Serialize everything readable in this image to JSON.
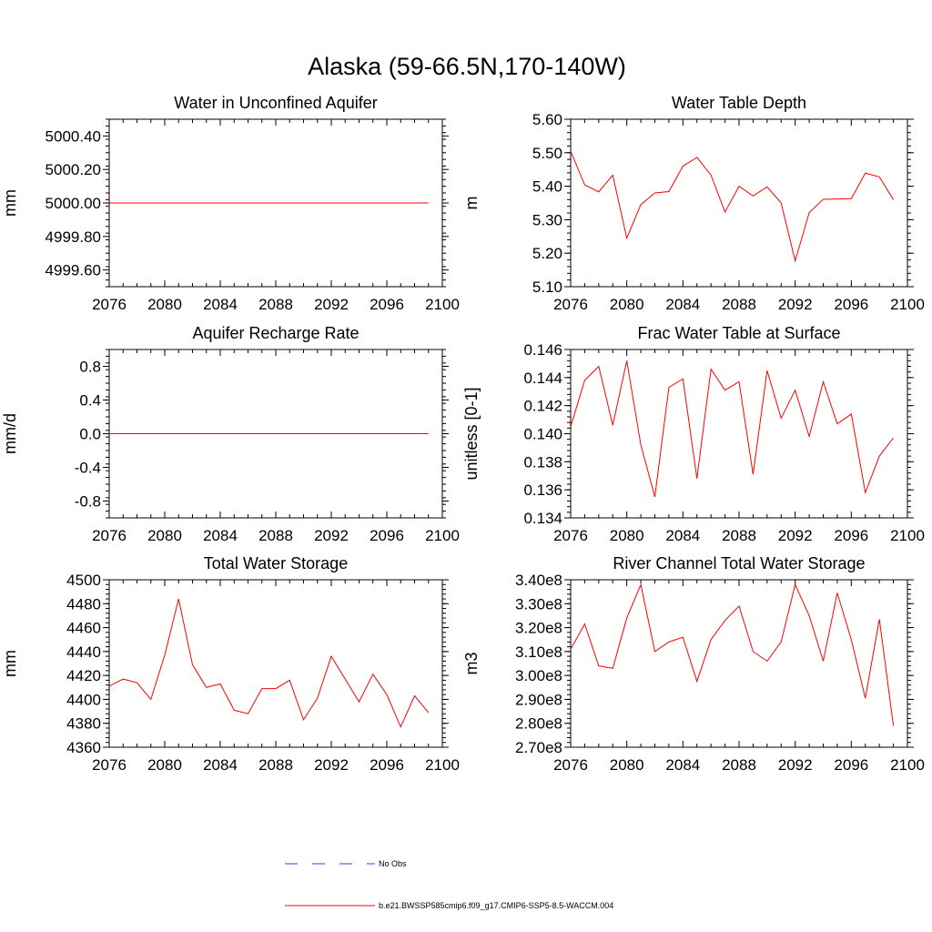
{
  "figure": {
    "title": "Alaska (59-66.5N,170-140W)"
  },
  "colors": {
    "model_line": "#ff0000",
    "obs_line": "#3b3bd6",
    "axis": "#000000"
  },
  "legend": {
    "obs_label": "No Obs",
    "model_label": "b.e21.BWSSP585cmip6.f09_g17.CMIP6-SSP5-8.5-WACCM.004"
  },
  "chart_data": [
    {
      "type": "line",
      "title": "Water in Unconfined Aquifer",
      "xlabel": "",
      "ylabel": "mm",
      "xlim": [
        2076,
        2100
      ],
      "ylim": [
        4999.5,
        5000.5
      ],
      "xticks": [
        2076,
        2080,
        2084,
        2088,
        2092,
        2096,
        2100
      ],
      "xtick_labels": [
        "2076",
        "2080",
        "2084",
        "2088",
        "2092",
        "2096",
        "2100"
      ],
      "yticks": [
        4999.6,
        4999.8,
        5000.0,
        5000.2,
        5000.4
      ],
      "ytick_labels": [
        "4999.60",
        "4999.80",
        "5000.00",
        "5000.20",
        "5000.40"
      ],
      "yminor_step": 0.04,
      "x": [
        2076,
        2077,
        2078,
        2079,
        2080,
        2081,
        2082,
        2083,
        2084,
        2085,
        2086,
        2087,
        2088,
        2089,
        2090,
        2091,
        2092,
        2093,
        2094,
        2095,
        2096,
        2097,
        2098,
        2099
      ],
      "series": [
        {
          "name": "b.e21.BWSSP585cmip6.f09_g17.CMIP6-SSP5-8.5-WACCM.004",
          "values": [
            5000,
            5000,
            5000,
            5000,
            5000,
            5000,
            5000,
            5000,
            5000,
            5000,
            5000,
            5000,
            5000,
            5000,
            5000,
            5000,
            5000,
            5000,
            5000,
            5000,
            5000,
            5000,
            5000,
            5000
          ]
        }
      ]
    },
    {
      "type": "line",
      "title": "Water Table Depth",
      "xlabel": "",
      "ylabel": "m",
      "xlim": [
        2076,
        2100
      ],
      "ylim": [
        5.1,
        5.6
      ],
      "xticks": [
        2076,
        2080,
        2084,
        2088,
        2092,
        2096,
        2100
      ],
      "xtick_labels": [
        "2076",
        "2080",
        "2084",
        "2088",
        "2092",
        "2096",
        "2100"
      ],
      "yticks": [
        5.1,
        5.2,
        5.3,
        5.4,
        5.5,
        5.6
      ],
      "ytick_labels": [
        "5.10",
        "5.20",
        "5.30",
        "5.40",
        "5.50",
        "5.60"
      ],
      "yminor_step": 0.02,
      "x": [
        2076,
        2077,
        2078,
        2079,
        2080,
        2081,
        2082,
        2083,
        2084,
        2085,
        2086,
        2087,
        2088,
        2089,
        2090,
        2091,
        2092,
        2093,
        2094,
        2095,
        2096,
        2097,
        2098,
        2099
      ],
      "series": [
        {
          "name": "b.e21.BWSSP585cmip6.f09_g17.CMIP6-SSP5-8.5-WACCM.004",
          "values": [
            5.505,
            5.404,
            5.383,
            5.433,
            5.245,
            5.345,
            5.38,
            5.384,
            5.46,
            5.486,
            5.433,
            5.323,
            5.4,
            5.371,
            5.398,
            5.35,
            5.177,
            5.321,
            5.361,
            5.362,
            5.363,
            5.439,
            5.428,
            5.36
          ]
        }
      ]
    },
    {
      "type": "line",
      "title": "Aquifer Recharge Rate",
      "xlabel": "",
      "ylabel": "mm/d",
      "xlim": [
        2076,
        2100
      ],
      "ylim": [
        -1.0,
        1.0
      ],
      "xticks": [
        2076,
        2080,
        2084,
        2088,
        2092,
        2096,
        2100
      ],
      "xtick_labels": [
        "2076",
        "2080",
        "2084",
        "2088",
        "2092",
        "2096",
        "2100"
      ],
      "yticks": [
        -0.8,
        -0.4,
        0.0,
        0.4,
        0.8
      ],
      "ytick_labels": [
        "-0.8",
        "-0.4",
        "0.0",
        "0.4",
        "0.8"
      ],
      "yminor_step": 0.08,
      "x": [
        2076,
        2077,
        2078,
        2079,
        2080,
        2081,
        2082,
        2083,
        2084,
        2085,
        2086,
        2087,
        2088,
        2089,
        2090,
        2091,
        2092,
        2093,
        2094,
        2095,
        2096,
        2097,
        2098,
        2099
      ],
      "series": [
        {
          "name": "b.e21.BWSSP585cmip6.f09_g17.CMIP6-SSP5-8.5-WACCM.004",
          "values": [
            0,
            0,
            0,
            0,
            0,
            0,
            0,
            0,
            0,
            0,
            0,
            0,
            0,
            0,
            0,
            0,
            0,
            0,
            0,
            0,
            0,
            0,
            0,
            0
          ]
        }
      ]
    },
    {
      "type": "line",
      "title": "Frac Water Table at Surface",
      "xlabel": "",
      "ylabel": "unitless [0-1]",
      "xlim": [
        2076,
        2100
      ],
      "ylim": [
        0.134,
        0.146
      ],
      "xticks": [
        2076,
        2080,
        2084,
        2088,
        2092,
        2096,
        2100
      ],
      "xtick_labels": [
        "2076",
        "2080",
        "2084",
        "2088",
        "2092",
        "2096",
        "2100"
      ],
      "yticks": [
        0.134,
        0.136,
        0.138,
        0.14,
        0.142,
        0.144,
        0.146
      ],
      "ytick_labels": [
        "0.134",
        "0.136",
        "0.138",
        "0.140",
        "0.142",
        "0.144",
        "0.146"
      ],
      "yminor_step": 0.0004,
      "x": [
        2076,
        2077,
        2078,
        2079,
        2080,
        2081,
        2082,
        2083,
        2084,
        2085,
        2086,
        2087,
        2088,
        2089,
        2090,
        2091,
        2092,
        2093,
        2094,
        2095,
        2096,
        2097,
        2098,
        2099
      ],
      "series": [
        {
          "name": "b.e21.BWSSP585cmip6.f09_g17.CMIP6-SSP5-8.5-WACCM.004",
          "values": [
            0.1405,
            0.1438,
            0.1448,
            0.1406,
            0.1452,
            0.1392,
            0.1355,
            0.1433,
            0.1439,
            0.1368,
            0.1446,
            0.1431,
            0.1437,
            0.1371,
            0.1445,
            0.1411,
            0.1431,
            0.1398,
            0.1437,
            0.1407,
            0.1414,
            0.1358,
            0.1384,
            0.1397
          ]
        }
      ]
    },
    {
      "type": "line",
      "title": "Total Water Storage",
      "xlabel": "",
      "ylabel": "mm",
      "xlim": [
        2076,
        2100
      ],
      "ylim": [
        4360,
        4500
      ],
      "xticks": [
        2076,
        2080,
        2084,
        2088,
        2092,
        2096,
        2100
      ],
      "xtick_labels": [
        "2076",
        "2080",
        "2084",
        "2088",
        "2092",
        "2096",
        "2100"
      ],
      "yticks": [
        4360,
        4380,
        4400,
        4420,
        4440,
        4460,
        4480,
        4500
      ],
      "ytick_labels": [
        "4360",
        "4380",
        "4400",
        "4420",
        "4440",
        "4460",
        "4480",
        "4500"
      ],
      "yminor_step": 4,
      "x": [
        2076,
        2077,
        2078,
        2079,
        2080,
        2081,
        2082,
        2083,
        2084,
        2085,
        2086,
        2087,
        2088,
        2089,
        2090,
        2091,
        2092,
        2093,
        2094,
        2095,
        2096,
        2097,
        2098,
        2099
      ],
      "series": [
        {
          "name": "b.e21.BWSSP585cmip6.f09_g17.CMIP6-SSP5-8.5-WACCM.004",
          "values": [
            4411,
            4417,
            4414,
            4400,
            4437,
            4484,
            4429,
            4410,
            4413,
            4391,
            4388,
            4409,
            4409,
            4416,
            4383,
            4401,
            4436,
            4417,
            4398,
            4421,
            4404,
            4377,
            4403,
            4389
          ]
        }
      ]
    },
    {
      "type": "line",
      "title": "River Channel Total Water Storage",
      "xlabel": "",
      "ylabel": "m3",
      "xlim": [
        2076,
        2100
      ],
      "ylim": [
        270000000.0,
        340000000.0
      ],
      "xticks": [
        2076,
        2080,
        2084,
        2088,
        2092,
        2096,
        2100
      ],
      "xtick_labels": [
        "2076",
        "2080",
        "2084",
        "2088",
        "2092",
        "2096",
        "2100"
      ],
      "yticks": [
        270000000.0,
        280000000.0,
        290000000.0,
        300000000.0,
        310000000.0,
        320000000.0,
        330000000.0,
        340000000.0
      ],
      "ytick_labels": [
        "2.70e8",
        "2.80e8",
        "2.90e8",
        "3.00e8",
        "3.10e8",
        "3.20e8",
        "3.30e8",
        "3.40e8"
      ],
      "yminor_step": 2000000.0,
      "x": [
        2076,
        2077,
        2078,
        2079,
        2080,
        2081,
        2082,
        2083,
        2084,
        2085,
        2086,
        2087,
        2088,
        2089,
        2090,
        2091,
        2092,
        2093,
        2094,
        2095,
        2096,
        2097,
        2098,
        2099
      ],
      "series": [
        {
          "name": "b.e21.BWSSP585cmip6.f09_g17.CMIP6-SSP5-8.5-WACCM.004",
          "values": [
            311000000.0,
            321500000.0,
            304000000.0,
            303000000.0,
            324000000.0,
            338000000.0,
            310000000.0,
            314000000.0,
            316000000.0,
            297500000.0,
            315000000.0,
            323000000.0,
            329000000.0,
            310000000.0,
            306000000.0,
            314000000.0,
            338000000.0,
            325000000.0,
            306000000.0,
            334500000.0,
            315000000.0,
            290500000.0,
            323500000.0,
            279000000.0
          ]
        }
      ]
    }
  ]
}
